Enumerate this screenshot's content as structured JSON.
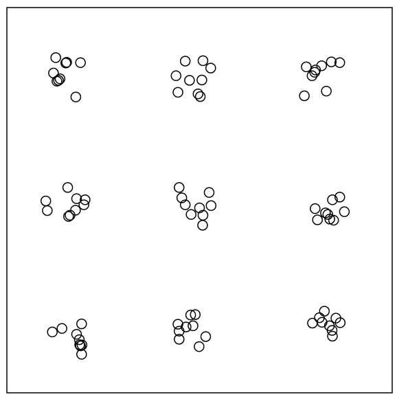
{
  "chart_data": {
    "type": "scatter",
    "title": "",
    "xlabel": "",
    "ylabel": "",
    "grid": false,
    "legend": "none",
    "xlim": [
      0,
      1
    ],
    "ylim": [
      0,
      1
    ],
    "marker": "open-circle",
    "colors": {
      "marker_stroke": "#000000",
      "frame": "#000000",
      "background": "#ffffff"
    },
    "points": [
      {
        "x": 0.127,
        "y": 0.87
      },
      {
        "x": 0.153,
        "y": 0.856
      },
      {
        "x": 0.155,
        "y": 0.858
      },
      {
        "x": 0.191,
        "y": 0.857
      },
      {
        "x": 0.121,
        "y": 0.83
      },
      {
        "x": 0.138,
        "y": 0.815
      },
      {
        "x": 0.13,
        "y": 0.809
      },
      {
        "x": 0.134,
        "y": 0.811
      },
      {
        "x": 0.179,
        "y": 0.768
      },
      {
        "x": 0.463,
        "y": 0.861
      },
      {
        "x": 0.509,
        "y": 0.862
      },
      {
        "x": 0.529,
        "y": 0.843
      },
      {
        "x": 0.439,
        "y": 0.823
      },
      {
        "x": 0.474,
        "y": 0.811
      },
      {
        "x": 0.506,
        "y": 0.812
      },
      {
        "x": 0.444,
        "y": 0.78
      },
      {
        "x": 0.496,
        "y": 0.776
      },
      {
        "x": 0.502,
        "y": 0.769
      },
      {
        "x": 0.777,
        "y": 0.846
      },
      {
        "x": 0.801,
        "y": 0.838
      },
      {
        "x": 0.817,
        "y": 0.849
      },
      {
        "x": 0.842,
        "y": 0.859
      },
      {
        "x": 0.864,
        "y": 0.857
      },
      {
        "x": 0.799,
        "y": 0.832
      },
      {
        "x": 0.792,
        "y": 0.823
      },
      {
        "x": 0.829,
        "y": 0.783
      },
      {
        "x": 0.772,
        "y": 0.771
      },
      {
        "x": 0.158,
        "y": 0.533
      },
      {
        "x": 0.101,
        "y": 0.498
      },
      {
        "x": 0.105,
        "y": 0.473
      },
      {
        "x": 0.181,
        "y": 0.504
      },
      {
        "x": 0.203,
        "y": 0.501
      },
      {
        "x": 0.2,
        "y": 0.488
      },
      {
        "x": 0.178,
        "y": 0.474
      },
      {
        "x": 0.16,
        "y": 0.458
      },
      {
        "x": 0.164,
        "y": 0.461
      },
      {
        "x": 0.447,
        "y": 0.533
      },
      {
        "x": 0.454,
        "y": 0.506
      },
      {
        "x": 0.463,
        "y": 0.488
      },
      {
        "x": 0.525,
        "y": 0.52
      },
      {
        "x": 0.53,
        "y": 0.486
      },
      {
        "x": 0.5,
        "y": 0.48
      },
      {
        "x": 0.478,
        "y": 0.463
      },
      {
        "x": 0.509,
        "y": 0.461
      },
      {
        "x": 0.508,
        "y": 0.435
      },
      {
        "x": 0.864,
        "y": 0.508
      },
      {
        "x": 0.845,
        "y": 0.501
      },
      {
        "x": 0.8,
        "y": 0.478
      },
      {
        "x": 0.827,
        "y": 0.467
      },
      {
        "x": 0.833,
        "y": 0.463
      },
      {
        "x": 0.876,
        "y": 0.47
      },
      {
        "x": 0.806,
        "y": 0.449
      },
      {
        "x": 0.838,
        "y": 0.451
      },
      {
        "x": 0.848,
        "y": 0.448
      },
      {
        "x": 0.194,
        "y": 0.179
      },
      {
        "x": 0.143,
        "y": 0.167
      },
      {
        "x": 0.118,
        "y": 0.158
      },
      {
        "x": 0.181,
        "y": 0.152
      },
      {
        "x": 0.188,
        "y": 0.138
      },
      {
        "x": 0.189,
        "y": 0.125
      },
      {
        "x": 0.195,
        "y": 0.124
      },
      {
        "x": 0.191,
        "y": 0.122
      },
      {
        "x": 0.194,
        "y": 0.1
      },
      {
        "x": 0.477,
        "y": 0.202
      },
      {
        "x": 0.489,
        "y": 0.203
      },
      {
        "x": 0.444,
        "y": 0.178
      },
      {
        "x": 0.465,
        "y": 0.171
      },
      {
        "x": 0.483,
        "y": 0.174
      },
      {
        "x": 0.447,
        "y": 0.16
      },
      {
        "x": 0.516,
        "y": 0.146
      },
      {
        "x": 0.447,
        "y": 0.139
      },
      {
        "x": 0.499,
        "y": 0.12
      },
      {
        "x": 0.824,
        "y": 0.212
      },
      {
        "x": 0.811,
        "y": 0.195
      },
      {
        "x": 0.854,
        "y": 0.194
      },
      {
        "x": 0.793,
        "y": 0.181
      },
      {
        "x": 0.818,
        "y": 0.183
      },
      {
        "x": 0.865,
        "y": 0.182
      },
      {
        "x": 0.837,
        "y": 0.174
      },
      {
        "x": 0.844,
        "y": 0.162
      },
      {
        "x": 0.845,
        "y": 0.147
      }
    ]
  }
}
